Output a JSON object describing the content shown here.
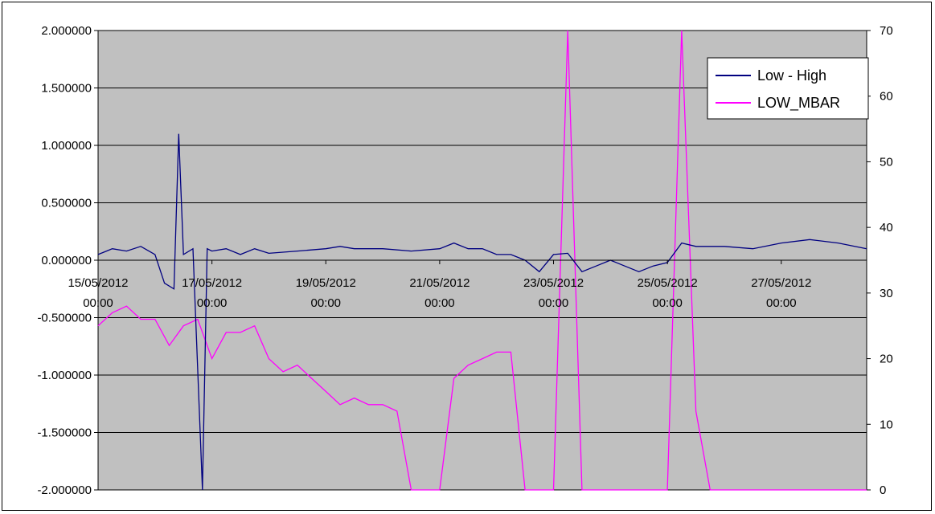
{
  "chart_data": {
    "type": "line",
    "title": "",
    "xlabel": "",
    "ylabel": "",
    "grid": true,
    "legend_position": "top-right",
    "plot_background": "#c0c0c0",
    "x_unit": "datetime",
    "xlim": [
      "2012-05-15 00:00",
      "2012-05-28 12:00"
    ],
    "x_tick_labels": [
      {
        "date": "15/05/2012",
        "time": "00:00",
        "x": "2012-05-15 00:00"
      },
      {
        "date": "17/05/2012",
        "time": "00:00",
        "x": "2012-05-17 00:00"
      },
      {
        "date": "19/05/2012",
        "time": "00:00",
        "x": "2012-05-19 00:00"
      },
      {
        "date": "21/05/2012",
        "time": "00:00",
        "x": "2012-05-21 00:00"
      },
      {
        "date": "23/05/2012",
        "time": "00:00",
        "x": "2012-05-23 00:00"
      },
      {
        "date": "25/05/2012",
        "time": "00:00",
        "x": "2012-05-25 00:00"
      },
      {
        "date": "27/05/2012",
        "time": "00:00",
        "x": "2012-05-27 00:00"
      }
    ],
    "y_left": {
      "ylim": [
        -2.0,
        2.0
      ],
      "ticks": [
        "2.000000",
        "1.500000",
        "1.000000",
        "0.500000",
        "0.000000",
        "-0.500000",
        "-1.000000",
        "-1.500000",
        "-2.000000"
      ]
    },
    "y_right": {
      "ylim": [
        0,
        70
      ],
      "ticks": [
        "70",
        "60",
        "50",
        "40",
        "30",
        "20",
        "10",
        "0"
      ]
    },
    "series": [
      {
        "name": "Low - High",
        "axis": "left",
        "color": "#000080",
        "points": [
          [
            "2012-05-15 00:00",
            0.05
          ],
          [
            "2012-05-15 06:00",
            0.1
          ],
          [
            "2012-05-15 12:00",
            0.08
          ],
          [
            "2012-05-15 18:00",
            0.12
          ],
          [
            "2012-05-16 00:00",
            0.05
          ],
          [
            "2012-05-16 04:00",
            -0.2
          ],
          [
            "2012-05-16 08:00",
            -0.25
          ],
          [
            "2012-05-16 10:00",
            1.1
          ],
          [
            "2012-05-16 12:00",
            0.05
          ],
          [
            "2012-05-16 16:00",
            0.1
          ],
          [
            "2012-05-16 20:00",
            -2.0
          ],
          [
            "2012-05-16 22:00",
            0.1
          ],
          [
            "2012-05-17 00:00",
            0.08
          ],
          [
            "2012-05-17 06:00",
            0.1
          ],
          [
            "2012-05-17 12:00",
            0.05
          ],
          [
            "2012-05-17 18:00",
            0.1
          ],
          [
            "2012-05-18 00:00",
            0.06
          ],
          [
            "2012-05-18 12:00",
            0.08
          ],
          [
            "2012-05-19 00:00",
            0.1
          ],
          [
            "2012-05-19 06:00",
            0.12
          ],
          [
            "2012-05-19 12:00",
            0.1
          ],
          [
            "2012-05-20 00:00",
            0.1
          ],
          [
            "2012-05-20 12:00",
            0.08
          ],
          [
            "2012-05-21 00:00",
            0.1
          ],
          [
            "2012-05-21 06:00",
            0.15
          ],
          [
            "2012-05-21 12:00",
            0.1
          ],
          [
            "2012-05-21 18:00",
            0.1
          ],
          [
            "2012-05-22 00:00",
            0.05
          ],
          [
            "2012-05-22 06:00",
            0.05
          ],
          [
            "2012-05-22 12:00",
            0.0
          ],
          [
            "2012-05-22 18:00",
            -0.1
          ],
          [
            "2012-05-23 00:00",
            0.05
          ],
          [
            "2012-05-23 06:00",
            0.06
          ],
          [
            "2012-05-23 12:00",
            -0.1
          ],
          [
            "2012-05-23 18:00",
            -0.05
          ],
          [
            "2012-05-24 00:00",
            0.0
          ],
          [
            "2012-05-24 06:00",
            -0.05
          ],
          [
            "2012-05-24 12:00",
            -0.1
          ],
          [
            "2012-05-24 18:00",
            -0.05
          ],
          [
            "2012-05-25 00:00",
            -0.02
          ],
          [
            "2012-05-25 06:00",
            0.15
          ],
          [
            "2012-05-25 12:00",
            0.12
          ],
          [
            "2012-05-26 00:00",
            0.12
          ],
          [
            "2012-05-26 12:00",
            0.1
          ],
          [
            "2012-05-27 00:00",
            0.15
          ],
          [
            "2012-05-27 12:00",
            0.18
          ],
          [
            "2012-05-28 00:00",
            0.15
          ],
          [
            "2012-05-28 12:00",
            0.1
          ]
        ]
      },
      {
        "name": "LOW_MBAR",
        "axis": "right",
        "color": "#ff00ff",
        "points": [
          [
            "2012-05-15 00:00",
            25
          ],
          [
            "2012-05-15 06:00",
            27
          ],
          [
            "2012-05-15 12:00",
            28
          ],
          [
            "2012-05-15 18:00",
            26
          ],
          [
            "2012-05-16 00:00",
            26
          ],
          [
            "2012-05-16 06:00",
            22
          ],
          [
            "2012-05-16 12:00",
            25
          ],
          [
            "2012-05-16 18:00",
            26
          ],
          [
            "2012-05-17 00:00",
            20
          ],
          [
            "2012-05-17 06:00",
            24
          ],
          [
            "2012-05-17 12:00",
            24
          ],
          [
            "2012-05-17 18:00",
            25
          ],
          [
            "2012-05-18 00:00",
            20
          ],
          [
            "2012-05-18 06:00",
            18
          ],
          [
            "2012-05-18 12:00",
            19
          ],
          [
            "2012-05-18 18:00",
            17
          ],
          [
            "2012-05-19 00:00",
            15
          ],
          [
            "2012-05-19 06:00",
            13
          ],
          [
            "2012-05-19 12:00",
            14
          ],
          [
            "2012-05-19 18:00",
            13
          ],
          [
            "2012-05-20 00:00",
            13
          ],
          [
            "2012-05-20 06:00",
            12
          ],
          [
            "2012-05-20 12:00",
            0
          ],
          [
            "2012-05-21 00:00",
            0
          ],
          [
            "2012-05-21 06:00",
            17
          ],
          [
            "2012-05-21 12:00",
            19
          ],
          [
            "2012-05-21 18:00",
            20
          ],
          [
            "2012-05-22 00:00",
            21
          ],
          [
            "2012-05-22 06:00",
            21
          ],
          [
            "2012-05-22 12:00",
            0
          ],
          [
            "2012-05-23 00:00",
            0
          ],
          [
            "2012-05-23 06:00",
            70
          ],
          [
            "2012-05-23 12:00",
            0
          ],
          [
            "2012-05-24 00:00",
            0
          ],
          [
            "2012-05-24 12:00",
            0
          ],
          [
            "2012-05-25 00:00",
            0
          ],
          [
            "2012-05-25 06:00",
            70
          ],
          [
            "2012-05-25 12:00",
            12
          ],
          [
            "2012-05-25 18:00",
            0
          ],
          [
            "2012-05-26 00:00",
            0
          ],
          [
            "2012-05-27 00:00",
            0
          ],
          [
            "2012-05-28 12:00",
            0
          ]
        ]
      }
    ]
  }
}
